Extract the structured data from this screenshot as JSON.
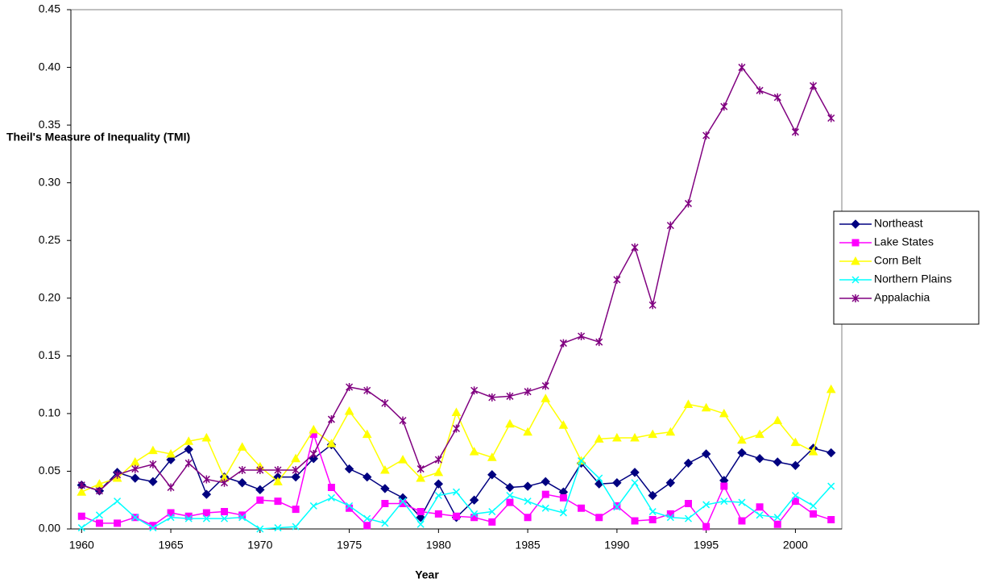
{
  "chart_data": {
    "type": "line",
    "y_label": "Theil's Measure of Inequality (TMI)",
    "x_label": "Year",
    "x": [
      1960,
      1961,
      1962,
      1963,
      1964,
      1965,
      1966,
      1967,
      1968,
      1969,
      1970,
      1971,
      1972,
      1973,
      1974,
      1975,
      1976,
      1977,
      1978,
      1979,
      1980,
      1981,
      1982,
      1983,
      1984,
      1985,
      1986,
      1987,
      1988,
      1989,
      1990,
      1991,
      1992,
      1993,
      1994,
      1995,
      1996,
      1997,
      1998,
      1999,
      2000,
      2001,
      2002
    ],
    "xlim": [
      1959.4,
      2002.6
    ],
    "xticks": [
      1960,
      1965,
      1970,
      1975,
      1980,
      1985,
      1990,
      1995,
      2000
    ],
    "ylim": [
      0,
      0.45
    ],
    "yticks": [
      {
        "value": 0,
        "label": "0.00"
      },
      {
        "value": 0.05,
        "label": "0.05"
      },
      {
        "value": 0.1,
        "label": "0.10"
      },
      {
        "value": 0.15,
        "label": "0.15"
      },
      {
        "value": 0.2,
        "label": "0.20"
      },
      {
        "value": 0.25,
        "label": "0.25"
      },
      {
        "value": 0.3,
        "label": "0.30"
      },
      {
        "value": 0.35,
        "label": "0.35"
      },
      {
        "value": 0.4,
        "label": "0.40"
      },
      {
        "value": 0.45,
        "label": "0.45"
      }
    ],
    "legend": "right",
    "series": [
      {
        "name": "Northeast",
        "color": "#000080",
        "marker": "diamond",
        "values": [
          0.038,
          0.033,
          0.049,
          0.044,
          0.041,
          0.06,
          0.069,
          0.03,
          0.045,
          0.04,
          0.034,
          0.045,
          0.045,
          0.061,
          0.073,
          0.052,
          0.045,
          0.035,
          0.027,
          0.01,
          0.039,
          0.01,
          0.025,
          0.047,
          0.036,
          0.037,
          0.041,
          0.032,
          0.057,
          0.039,
          0.04,
          0.049,
          0.029,
          0.04,
          0.057,
          0.065,
          0.042,
          0.066,
          0.061,
          0.058,
          0.055,
          0.07,
          0.066
        ]
      },
      {
        "name": "Lake States",
        "color": "#ff00ff",
        "marker": "square",
        "values": [
          0.011,
          0.005,
          0.005,
          0.01,
          0.003,
          0.014,
          0.011,
          0.014,
          0.015,
          0.012,
          0.025,
          0.024,
          0.017,
          0.082,
          0.036,
          0.018,
          0.003,
          0.022,
          0.022,
          0.015,
          0.013,
          0.011,
          0.01,
          0.006,
          0.023,
          0.01,
          0.03,
          0.027,
          0.018,
          0.01,
          0.02,
          0.007,
          0.008,
          0.013,
          0.022,
          0.002,
          0.037,
          0.007,
          0.019,
          0.004,
          0.024,
          0.013,
          0.008
        ]
      },
      {
        "name": "Corn Belt",
        "color": "#ffff00",
        "marker": "triangle",
        "values": [
          0.032,
          0.039,
          0.044,
          0.058,
          0.068,
          0.065,
          0.076,
          0.079,
          0.044,
          0.071,
          0.054,
          0.041,
          0.061,
          0.086,
          0.074,
          0.102,
          0.082,
          0.051,
          0.06,
          0.044,
          0.049,
          0.101,
          0.067,
          0.062,
          0.091,
          0.084,
          0.113,
          0.09,
          0.059,
          0.078,
          0.079,
          0.079,
          0.082,
          0.084,
          0.108,
          0.105,
          0.1,
          0.077,
          0.082,
          0.094,
          0.075,
          0.067,
          0.121
        ]
      },
      {
        "name": "Northern Plains",
        "color": "#00ffff",
        "marker": "x",
        "values": [
          0.001,
          0.012,
          0.024,
          0.01,
          0.001,
          0.01,
          0.009,
          0.009,
          0.009,
          0.01,
          0.0,
          0.001,
          0.002,
          0.02,
          0.027,
          0.02,
          0.009,
          0.005,
          0.024,
          0.004,
          0.029,
          0.032,
          0.013,
          0.015,
          0.029,
          0.024,
          0.018,
          0.014,
          0.059,
          0.044,
          0.019,
          0.04,
          0.015,
          0.01,
          0.009,
          0.021,
          0.024,
          0.023,
          0.012,
          0.01,
          0.029,
          0.02,
          0.037
        ]
      },
      {
        "name": "Appalachia",
        "color": "#800080",
        "marker": "star",
        "values": [
          0.038,
          0.033,
          0.047,
          0.052,
          0.056,
          0.036,
          0.057,
          0.043,
          0.04,
          0.051,
          0.051,
          0.051,
          0.051,
          0.065,
          0.095,
          0.123,
          0.12,
          0.109,
          0.094,
          0.052,
          0.06,
          0.087,
          0.12,
          0.114,
          0.115,
          0.119,
          0.124,
          0.161,
          0.167,
          0.162,
          0.216,
          0.244,
          0.194,
          0.263,
          0.282,
          0.341,
          0.366,
          0.4,
          0.38,
          0.374,
          0.344,
          0.384,
          0.356
        ]
      }
    ]
  }
}
